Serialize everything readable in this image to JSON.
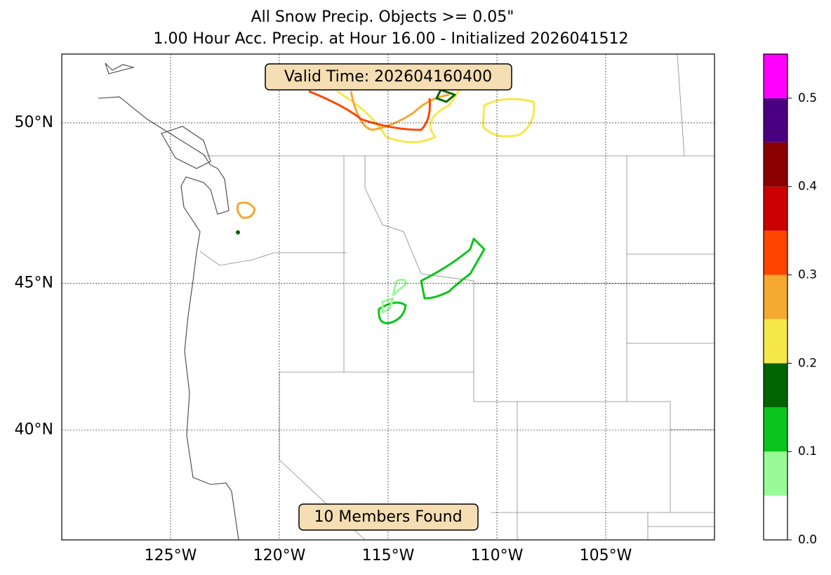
{
  "title": "All Snow Precip. Objects >= 0.05\"",
  "subtitle": "1.00 Hour Acc. Precip. at Hour 16.00 - Initialized 2026041512",
  "annotations": [
    "Valid Time: 202604160400",
    "10 Members Found"
  ],
  "map": {
    "projection": "mercator",
    "lonlim": [
      -130,
      -100
    ],
    "latlim": [
      36,
      52
    ],
    "lonticks": [
      {
        "value": -125,
        "label": "125°W"
      },
      {
        "value": -120,
        "label": "120°W"
      },
      {
        "value": -115,
        "label": "115°W"
      },
      {
        "value": -110,
        "label": "110°W"
      },
      {
        "value": -105,
        "label": "105°W"
      }
    ],
    "latticks": [
      {
        "value": 40,
        "label": "40°N"
      },
      {
        "value": 45,
        "label": "45°N"
      },
      {
        "value": 50,
        "label": "50°N"
      }
    ]
  },
  "colorbar": {
    "levels": [
      0,
      0.05,
      0.1,
      0.15,
      0.2,
      0.25,
      0.3,
      0.35,
      0.4,
      0.45,
      0.5,
      0.55
    ],
    "colors": [
      "#ffffff",
      "#98fb98",
      "#0bc51d",
      "#006400",
      "#f7e84a",
      "#f5a930",
      "#ff4500",
      "#cd0000",
      "#8b0000",
      "#4b0082",
      "#ff00ff"
    ],
    "ticks": [
      {
        "value": 0,
        "label": "0.0"
      },
      0.1,
      0.2,
      0.3,
      0.4,
      0.5
    ]
  }
}
